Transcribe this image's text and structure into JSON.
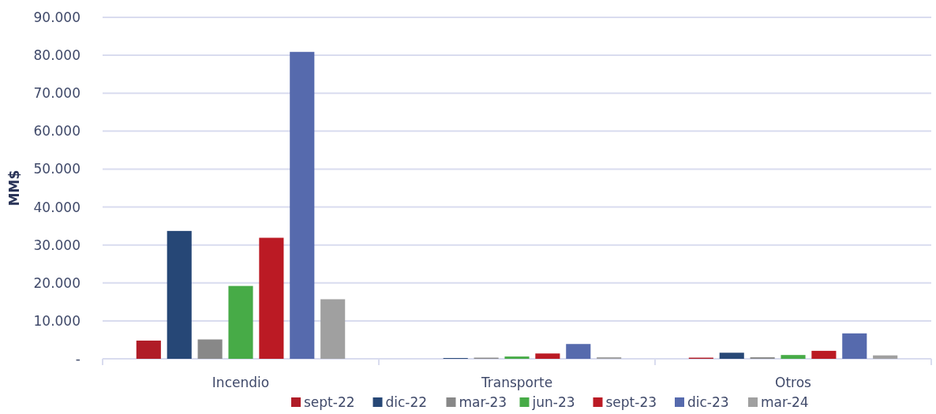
{
  "chart_data": {
    "type": "bar",
    "ylabel": "MM$",
    "categories": [
      "Incendio",
      "Transporte",
      "Otros"
    ],
    "series": [
      {
        "name": "sept-22",
        "color": "#b01c27",
        "values": [
          4800,
          0,
          300
        ]
      },
      {
        "name": "dic-22",
        "color": "#264776",
        "values": [
          33700,
          200,
          1600
        ]
      },
      {
        "name": "mar-23",
        "color": "#888888",
        "values": [
          5100,
          300,
          400
        ]
      },
      {
        "name": "jun-23",
        "color": "#47ab47",
        "values": [
          19200,
          600,
          1000
        ]
      },
      {
        "name": "sept-23",
        "color": "#bb1a24",
        "values": [
          31900,
          1400,
          2100
        ]
      },
      {
        "name": "dic-23",
        "color": "#566aad",
        "values": [
          80900,
          3900,
          6700
        ]
      },
      {
        "name": "mar-24",
        "color": "#a0a0a0",
        "values": [
          15700,
          400,
          900
        ]
      }
    ],
    "ylim": [
      0,
      90000
    ],
    "yticks": [
      {
        "value": 0,
        "label": "-"
      },
      {
        "value": 10000,
        "label": "10.000"
      },
      {
        "value": 20000,
        "label": "20.000"
      },
      {
        "value": 30000,
        "label": "30.000"
      },
      {
        "value": 40000,
        "label": "40.000"
      },
      {
        "value": 50000,
        "label": "50.000"
      },
      {
        "value": 60000,
        "label": "60.000"
      },
      {
        "value": 70000,
        "label": "70.000"
      },
      {
        "value": 80000,
        "label": "80.000"
      },
      {
        "value": 90000,
        "label": "90.000"
      }
    ],
    "grid": "y",
    "legend": "bottom"
  }
}
